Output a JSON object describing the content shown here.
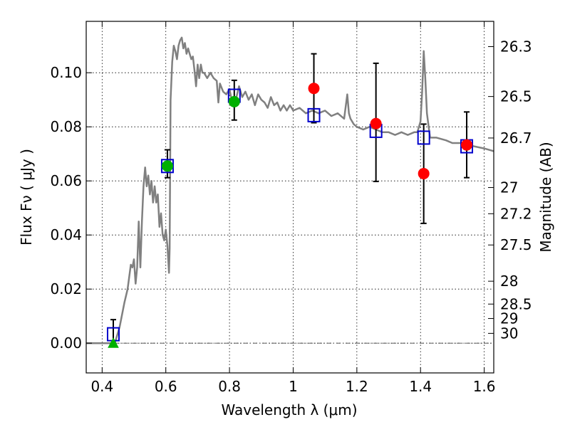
{
  "chart_data": {
    "type": "scatter",
    "title": "",
    "xlabel": "Wavelength  λ (μm)",
    "ylabel": "Flux  Fν ( μJy )",
    "y2label": "Magnitude (AB)",
    "xlim": [
      0.35,
      1.63
    ],
    "ylim": [
      -0.011,
      0.119
    ],
    "grid": true,
    "x_ticks": [
      0.4,
      0.6,
      0.8,
      1.0,
      1.2,
      1.4,
      1.6
    ],
    "x_tick_labels": [
      "0.4",
      "0.6",
      "0.8",
      "1",
      "1.2",
      "1.4",
      "1.6"
    ],
    "y_ticks": [
      0.0,
      0.02,
      0.04,
      0.06,
      0.08,
      0.1
    ],
    "y_tick_labels": [
      "0.00",
      "0.02",
      "0.04",
      "0.06",
      "0.08",
      "0.10"
    ],
    "mag_ticks": [
      26.3,
      26.5,
      26.7,
      27,
      27.2,
      27.5,
      28,
      28.5,
      29,
      30
    ],
    "mag_tick_labels": [
      "26.3",
      "26.5",
      "26.7",
      "27",
      "27.2",
      "27.5",
      "28",
      "28.5",
      "29",
      "30"
    ],
    "colors": {
      "model": "#808080",
      "model_photometry": "#0000cc",
      "observed_green": "#00b000",
      "observed_red": "#ff0000",
      "errorbar": "#000000"
    },
    "series": [
      {
        "kind": "model_spectrum",
        "x": [
          0.35,
          0.44,
          0.455,
          0.47,
          0.48,
          0.49,
          0.495,
          0.5,
          0.505,
          0.51,
          0.515,
          0.52,
          0.525,
          0.53,
          0.535,
          0.54,
          0.545,
          0.55,
          0.555,
          0.56,
          0.565,
          0.57,
          0.575,
          0.58,
          0.585,
          0.59,
          0.595,
          0.6,
          0.605,
          0.61,
          0.612,
          0.615,
          0.62,
          0.625,
          0.63,
          0.635,
          0.64,
          0.645,
          0.65,
          0.655,
          0.66,
          0.665,
          0.67,
          0.675,
          0.68,
          0.685,
          0.69,
          0.695,
          0.7,
          0.705,
          0.71,
          0.715,
          0.72,
          0.73,
          0.74,
          0.75,
          0.76,
          0.765,
          0.77,
          0.78,
          0.79,
          0.8,
          0.81,
          0.82,
          0.83,
          0.84,
          0.85,
          0.86,
          0.87,
          0.88,
          0.89,
          0.9,
          0.91,
          0.92,
          0.93,
          0.94,
          0.95,
          0.96,
          0.97,
          0.98,
          0.99,
          1.0,
          1.02,
          1.04,
          1.06,
          1.08,
          1.1,
          1.12,
          1.14,
          1.16,
          1.17,
          1.175,
          1.18,
          1.19,
          1.2,
          1.22,
          1.24,
          1.26,
          1.28,
          1.3,
          1.32,
          1.34,
          1.36,
          1.38,
          1.39,
          1.4,
          1.405,
          1.41,
          1.415,
          1.42,
          1.43,
          1.45,
          1.48,
          1.5,
          1.53,
          1.56,
          1.6,
          1.63
        ],
        "y": [
          0.0,
          0.0,
          0.006,
          0.015,
          0.02,
          0.029,
          0.028,
          0.031,
          0.022,
          0.028,
          0.045,
          0.028,
          0.045,
          0.058,
          0.065,
          0.058,
          0.062,
          0.055,
          0.06,
          0.052,
          0.058,
          0.052,
          0.055,
          0.043,
          0.048,
          0.04,
          0.038,
          0.042,
          0.036,
          0.026,
          0.035,
          0.09,
          0.104,
          0.11,
          0.108,
          0.105,
          0.11,
          0.112,
          0.113,
          0.109,
          0.111,
          0.107,
          0.109,
          0.107,
          0.105,
          0.106,
          0.101,
          0.095,
          0.103,
          0.098,
          0.103,
          0.1,
          0.1,
          0.098,
          0.1,
          0.098,
          0.097,
          0.089,
          0.096,
          0.093,
          0.092,
          0.094,
          0.088,
          0.09,
          0.095,
          0.091,
          0.093,
          0.09,
          0.092,
          0.088,
          0.092,
          0.09,
          0.089,
          0.087,
          0.091,
          0.088,
          0.089,
          0.086,
          0.088,
          0.086,
          0.088,
          0.086,
          0.087,
          0.085,
          0.086,
          0.085,
          0.086,
          0.084,
          0.085,
          0.083,
          0.092,
          0.085,
          0.083,
          0.081,
          0.08,
          0.079,
          0.08,
          0.079,
          0.078,
          0.078,
          0.077,
          0.078,
          0.077,
          0.078,
          0.078,
          0.082,
          0.093,
          0.108,
          0.098,
          0.085,
          0.076,
          0.076,
          0.075,
          0.074,
          0.074,
          0.073,
          0.072,
          0.071
        ]
      },
      {
        "kind": "model_photometry",
        "marker": "open-square",
        "x": [
          0.435,
          0.605,
          0.815,
          1.065,
          1.26,
          1.41,
          1.545
        ],
        "y": [
          0.0033,
          0.0655,
          0.0915,
          0.0843,
          0.0785,
          0.076,
          0.0728
        ]
      },
      {
        "kind": "observed_green",
        "marker": "filled-circle",
        "x": [
          0.605,
          0.815
        ],
        "y": [
          0.0655,
          0.0893
        ],
        "err_low": [
          0.0612,
          0.0825
        ],
        "err_high": [
          0.0715,
          0.0972
        ]
      },
      {
        "kind": "observed_green_limit",
        "marker": "filled-triangle",
        "x": [
          0.435
        ],
        "y": [
          0.0
        ],
        "err_low": [
          -0.001
        ],
        "err_high": [
          0.0087
        ]
      },
      {
        "kind": "observed_red",
        "marker": "filled-circle",
        "x": [
          1.065,
          1.26,
          1.41,
          1.545
        ],
        "y": [
          0.0942,
          0.0812,
          0.0627,
          0.0733
        ],
        "err_low": [
          0.0815,
          0.0598,
          0.0443,
          0.0612
        ],
        "err_high": [
          0.107,
          0.1035,
          0.081,
          0.0855
        ]
      }
    ]
  }
}
